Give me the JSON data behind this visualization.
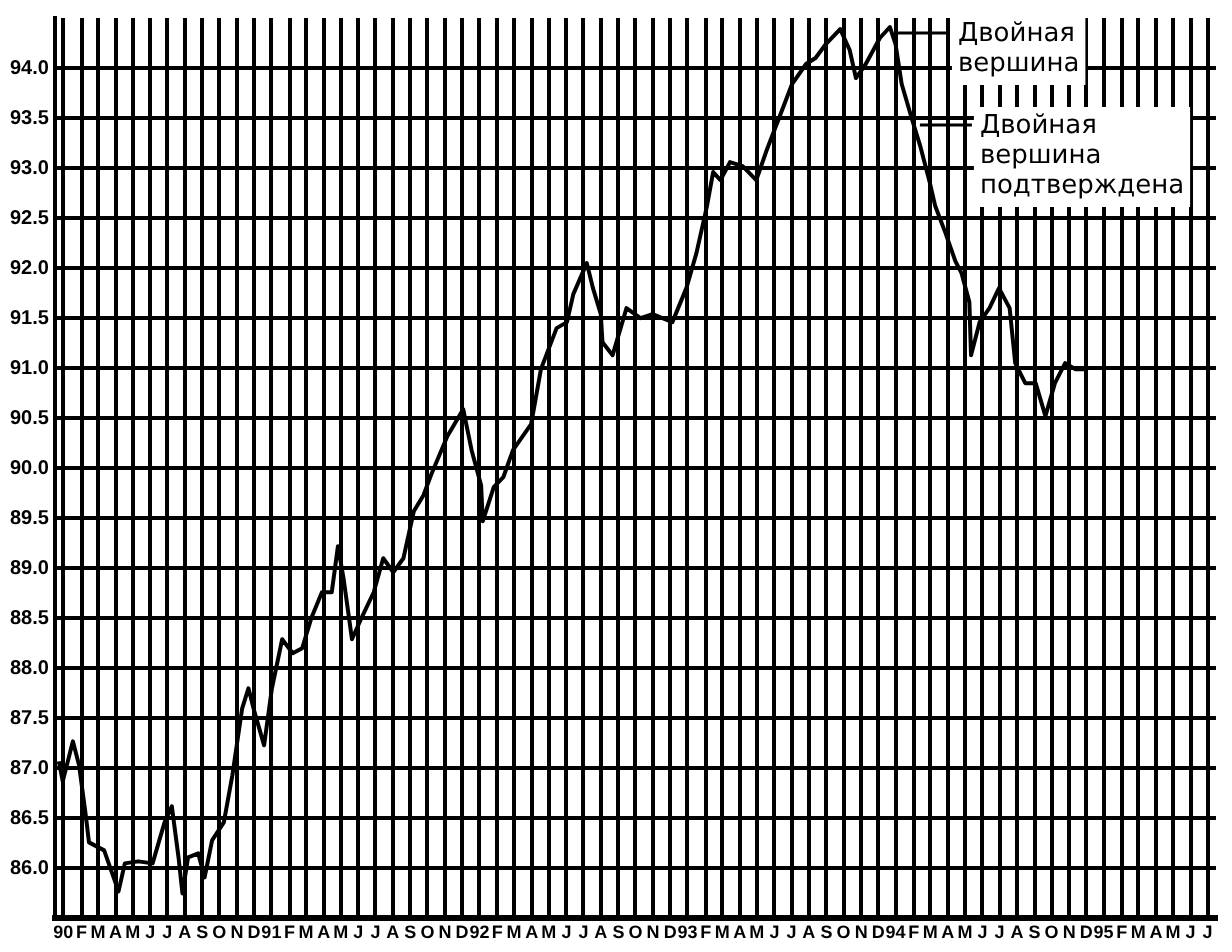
{
  "chart_data": {
    "type": "line",
    "x": [
      "1990-01-08",
      "1990-01-15",
      "1990-02-02",
      "1990-02-12",
      "1990-02-23",
      "1990-02-28",
      "1990-03-27",
      "1990-04-21",
      "1990-05-02",
      "1990-05-26",
      "1990-06-20",
      "1990-07-11",
      "1990-07-24",
      "1990-08-05",
      "1990-08-12",
      "1990-08-22",
      "1990-09-09",
      "1990-09-20",
      "1990-10-03",
      "1990-10-24",
      "1990-11-08",
      "1990-11-25",
      "1990-12-06",
      "1990-12-16",
      "1991-01-03",
      "1991-01-17",
      "1991-02-04",
      "1991-02-21",
      "1991-03-09",
      "1991-03-26",
      "1991-04-13",
      "1991-04-30",
      "1991-05-11",
      "1991-05-21",
      "1991-06-05",
      "1991-06-22",
      "1991-07-13",
      "1991-07-30",
      "1991-08-17",
      "1991-09-04",
      "1991-09-22",
      "1991-10-09",
      "1991-10-23",
      "1991-11-20",
      "1991-12-18",
      "1992-01-02",
      "1992-01-19",
      "1992-01-22",
      "1992-02-10",
      "1992-02-26",
      "1992-03-14",
      "1992-04-15",
      "1992-05-02",
      "1992-05-30",
      "1992-06-17",
      "1992-06-28",
      "1992-07-22",
      "1992-08-02",
      "1992-08-16",
      "1992-08-19",
      "1992-09-06",
      "1992-09-30",
      "1992-10-25",
      "1992-11-15",
      "1992-12-20",
      "1993-01-14",
      "1993-02-01",
      "1993-02-18",
      "1993-02-28",
      "1993-03-13",
      "1993-03-30",
      "1993-04-21",
      "1993-05-15",
      "1993-06-02",
      "1993-06-26",
      "1993-07-17",
      "1993-08-11",
      "1993-08-28",
      "1993-09-15",
      "1993-10-10",
      "1993-10-27",
      "1993-11-07",
      "1993-11-24",
      "1993-12-19",
      "1994-01-06",
      "1994-01-16",
      "1994-01-27",
      "1994-02-13",
      "1994-02-26",
      "1994-03-15",
      "1994-03-25",
      "1994-04-12",
      "1994-04-29",
      "1994-05-10",
      "1994-05-24",
      "1994-05-27",
      "1994-06-11",
      "1994-06-28",
      "1994-07-15",
      "1994-08-03",
      "1994-08-13",
      "1994-08-31",
      "1994-09-18",
      "1994-10-05",
      "1994-10-22",
      "1994-11-09",
      "1994-11-27",
      "1994-12-14"
    ],
    "series": [
      {
        "color": "#000000",
        "values": [
          87.07,
          86.87,
          87.27,
          87.03,
          86.52,
          86.26,
          86.18,
          85.77,
          86.05,
          86.07,
          86.05,
          86.46,
          86.62,
          86.11,
          85.75,
          86.11,
          86.15,
          85.91,
          86.28,
          86.46,
          86.93,
          87.6,
          87.8,
          87.58,
          87.23,
          87.8,
          88.29,
          88.15,
          88.2,
          88.51,
          88.76,
          88.76,
          89.22,
          88.9,
          88.29,
          88.51,
          88.76,
          89.1,
          88.96,
          89.1,
          89.57,
          89.73,
          89.94,
          90.32,
          90.59,
          90.18,
          89.83,
          89.47,
          89.81,
          89.91,
          90.18,
          90.44,
          90.99,
          91.4,
          91.46,
          91.74,
          92.05,
          91.8,
          91.54,
          91.26,
          91.13,
          91.6,
          91.5,
          91.54,
          91.46,
          91.8,
          92.15,
          92.62,
          92.96,
          92.88,
          93.06,
          93.02,
          92.88,
          93.17,
          93.53,
          93.84,
          94.04,
          94.1,
          94.24,
          94.39,
          94.18,
          93.9,
          94.04,
          94.3,
          94.41,
          94.24,
          93.84,
          93.49,
          93.23,
          92.86,
          92.62,
          92.35,
          92.07,
          91.95,
          91.66,
          91.13,
          91.46,
          91.6,
          91.8,
          91.6,
          91.05,
          90.85,
          90.85,
          90.52,
          90.85,
          91.05,
          90.99,
          90.99
        ]
      }
    ],
    "xlim": [
      "1990-01-01",
      "1995-07-31"
    ],
    "xticks": [
      {
        "value": "1990-01-16",
        "label": "90"
      },
      {
        "value": "1990-02-16",
        "label": "F"
      },
      {
        "value": "1990-03-16",
        "label": "M"
      },
      {
        "value": "1990-04-16",
        "label": "A"
      },
      {
        "value": "1990-05-16",
        "label": "M"
      },
      {
        "value": "1990-06-16",
        "label": "J"
      },
      {
        "value": "1990-07-16",
        "label": "J"
      },
      {
        "value": "1990-08-16",
        "label": "A"
      },
      {
        "value": "1990-09-16",
        "label": "S"
      },
      {
        "value": "1990-10-16",
        "label": "O"
      },
      {
        "value": "1990-11-16",
        "label": "N"
      },
      {
        "value": "1990-12-16",
        "label": "D"
      },
      {
        "value": "1991-01-16",
        "label": "91"
      },
      {
        "value": "1991-02-16",
        "label": "F"
      },
      {
        "value": "1991-03-16",
        "label": "M"
      },
      {
        "value": "1991-04-16",
        "label": "A"
      },
      {
        "value": "1991-05-16",
        "label": "M"
      },
      {
        "value": "1991-06-16",
        "label": "J"
      },
      {
        "value": "1991-07-16",
        "label": "J"
      },
      {
        "value": "1991-08-16",
        "label": "A"
      },
      {
        "value": "1991-09-16",
        "label": "S"
      },
      {
        "value": "1991-10-16",
        "label": "O"
      },
      {
        "value": "1991-11-16",
        "label": "N"
      },
      {
        "value": "1991-12-16",
        "label": "D"
      },
      {
        "value": "1992-01-16",
        "label": "92"
      },
      {
        "value": "1992-02-16",
        "label": "F"
      },
      {
        "value": "1992-03-16",
        "label": "M"
      },
      {
        "value": "1992-04-16",
        "label": "A"
      },
      {
        "value": "1992-05-16",
        "label": "M"
      },
      {
        "value": "1992-06-16",
        "label": "J"
      },
      {
        "value": "1992-07-16",
        "label": "J"
      },
      {
        "value": "1992-08-16",
        "label": "A"
      },
      {
        "value": "1992-09-16",
        "label": "S"
      },
      {
        "value": "1992-10-16",
        "label": "O"
      },
      {
        "value": "1992-11-16",
        "label": "N"
      },
      {
        "value": "1992-12-16",
        "label": "D"
      },
      {
        "value": "1993-01-16",
        "label": "93"
      },
      {
        "value": "1993-02-16",
        "label": "F"
      },
      {
        "value": "1993-03-16",
        "label": "M"
      },
      {
        "value": "1993-04-16",
        "label": "A"
      },
      {
        "value": "1993-05-16",
        "label": "M"
      },
      {
        "value": "1993-06-16",
        "label": "J"
      },
      {
        "value": "1993-07-16",
        "label": "J"
      },
      {
        "value": "1993-08-16",
        "label": "A"
      },
      {
        "value": "1993-09-16",
        "label": "S"
      },
      {
        "value": "1993-10-16",
        "label": "O"
      },
      {
        "value": "1993-11-16",
        "label": "N"
      },
      {
        "value": "1993-12-16",
        "label": "D"
      },
      {
        "value": "1994-01-16",
        "label": "94"
      },
      {
        "value": "1994-02-16",
        "label": "F"
      },
      {
        "value": "1994-03-16",
        "label": "M"
      },
      {
        "value": "1994-04-16",
        "label": "A"
      },
      {
        "value": "1994-05-16",
        "label": "M"
      },
      {
        "value": "1994-06-16",
        "label": "J"
      },
      {
        "value": "1994-07-16",
        "label": "J"
      },
      {
        "value": "1994-08-16",
        "label": "A"
      },
      {
        "value": "1994-09-16",
        "label": "S"
      },
      {
        "value": "1994-10-16",
        "label": "O"
      },
      {
        "value": "1994-11-16",
        "label": "N"
      },
      {
        "value": "1994-12-16",
        "label": "D"
      },
      {
        "value": "1995-01-16",
        "label": "95"
      },
      {
        "value": "1995-02-16",
        "label": "F"
      },
      {
        "value": "1995-03-16",
        "label": "M"
      },
      {
        "value": "1995-04-16",
        "label": "A"
      },
      {
        "value": "1995-05-16",
        "label": "M"
      },
      {
        "value": "1995-06-16",
        "label": "J"
      },
      {
        "value": "1995-07-16",
        "label": "J"
      }
    ],
    "ylim": [
      85.5,
      94.5
    ],
    "yticks": [
      {
        "value": 86,
        "label": "86.0"
      },
      {
        "value": 86.5,
        "label": "86.5"
      },
      {
        "value": 87,
        "label": "87.0"
      },
      {
        "value": 87.5,
        "label": "87.5"
      },
      {
        "value": 88,
        "label": "88.0"
      },
      {
        "value": 88.5,
        "label": "88.5"
      },
      {
        "value": 89,
        "label": "89.0"
      },
      {
        "value": 89.5,
        "label": "89.5"
      },
      {
        "value": 90,
        "label": "90.0"
      },
      {
        "value": 90.5,
        "label": "90.5"
      },
      {
        "value": 91,
        "label": "91.0"
      },
      {
        "value": 91.5,
        "label": "91.5"
      },
      {
        "value": 92,
        "label": "92.0"
      },
      {
        "value": 92.5,
        "label": "92.5"
      },
      {
        "value": 93,
        "label": "93.0"
      },
      {
        "value": 93.5,
        "label": "93.5"
      },
      {
        "value": 94,
        "label": "94.0"
      }
    ],
    "grid": true,
    "legend": false,
    "marker": "none",
    "line_style": "solid",
    "annotations": [
      {
        "text": "Двойная вершина",
        "x": "1994-01-06",
        "y": 94.41
      },
      {
        "text": "Двойная вершина подтверждена",
        "x": "1994-02-13",
        "y": 93.49
      }
    ]
  }
}
